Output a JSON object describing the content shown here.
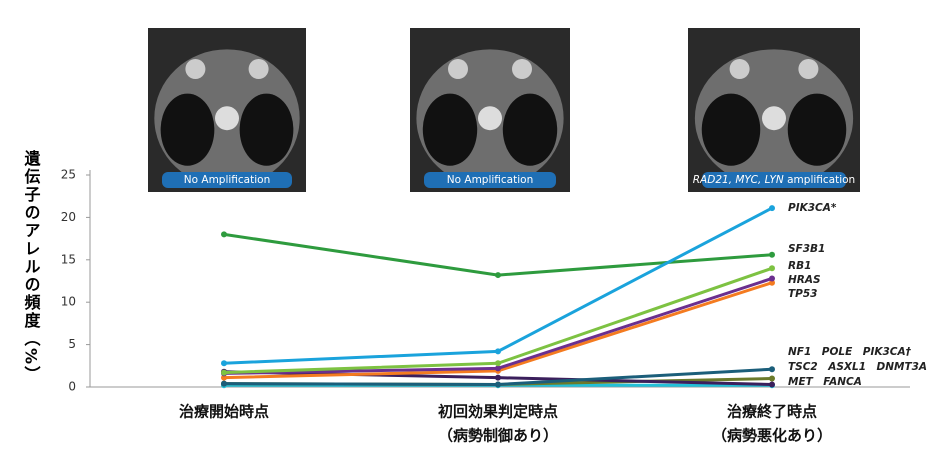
{
  "chart_data": {
    "type": "line",
    "y_label": "遺伝子のアレルの頻度（%）",
    "categories": [
      "治療開始時点",
      "初回効果判定時点",
      "治療終了時点"
    ],
    "category_sublabels": [
      null,
      "（病勢制御あり）",
      "（病勢悪化あり）"
    ],
    "ylim": [
      0,
      25
    ],
    "yticks": [
      0,
      5,
      10,
      15,
      20,
      25
    ],
    "series": [
      {
        "name": "PIK3CA*",
        "color": "#1aa3dc",
        "values": [
          2.8,
          4.2,
          21.1
        ]
      },
      {
        "name": "SF3B1",
        "color": "#2e9b3e",
        "values": [
          18,
          13.2,
          15.6
        ]
      },
      {
        "name": "RB1",
        "color": "#7dc242",
        "values": [
          1.7,
          2.8,
          14
        ]
      },
      {
        "name": "HRAS",
        "color": "#6b2f8f",
        "values": [
          1.6,
          2.2,
          12.8
        ]
      },
      {
        "name": "TP53",
        "color": "#f47b20",
        "values": [
          1.1,
          1.9,
          12.3
        ]
      },
      {
        "color": "#1b5e7a",
        "values": [
          0.4,
          0.3,
          2.1
        ]
      },
      {
        "color": "#3b1f5c",
        "values": [
          1.8,
          1.1,
          0.3
        ]
      },
      {
        "color": "#6b7a2a",
        "values": [
          0.4,
          0.3,
          1.0
        ]
      },
      {
        "color": "#22c0d8",
        "values": [
          0.2,
          0.2,
          0.2
        ]
      }
    ],
    "annotations": [
      "NF1　POLE　PIK3CA†",
      "TSC2　ASXL1　DNMT3A",
      "MET　FANCA"
    ],
    "images": [
      {
        "caption": "No Amplification"
      },
      {
        "caption": "No Amplification"
      },
      {
        "caption_genes": "RAD21, MYC, LYN",
        "caption_suffix": " amplification"
      }
    ]
  }
}
